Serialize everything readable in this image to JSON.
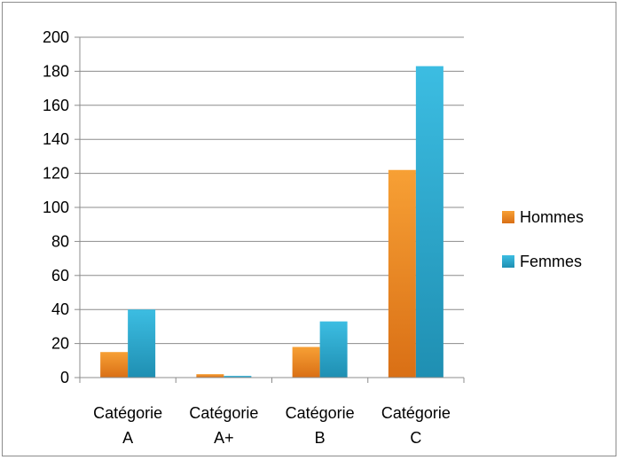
{
  "chart_data": {
    "type": "bar",
    "categories": [
      [
        "Catégorie",
        "A"
      ],
      [
        "Catégorie",
        "A+"
      ],
      [
        "Catégorie",
        "B"
      ],
      [
        "Catégorie",
        "C"
      ]
    ],
    "series": [
      {
        "name": "Hommes",
        "values": [
          15,
          2,
          18,
          122
        ],
        "color": "#f28a1e"
      },
      {
        "name": "Femmes",
        "values": [
          40,
          1,
          33,
          183
        ],
        "color": "#2aaed3"
      }
    ],
    "yticks": [
      "0",
      "20",
      "40",
      "60",
      "80",
      "100",
      "120",
      "140",
      "160",
      "180",
      "200"
    ],
    "ylim": [
      0,
      200
    ],
    "grid": true,
    "legend": "right"
  }
}
